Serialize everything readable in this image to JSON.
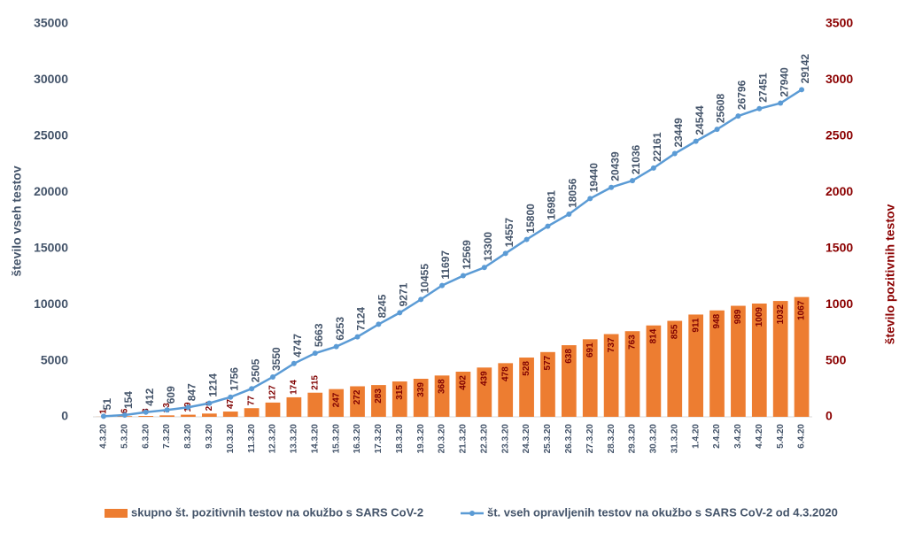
{
  "chart_data": {
    "type": "bar_line",
    "categories": [
      "4.3.20",
      "5.3.20",
      "6.3.20",
      "7.3.20",
      "8.3.20",
      "9.3.20",
      "10.3.20",
      "11.3.20",
      "12.3.20",
      "13.3.20",
      "14.3.20",
      "15.3.20",
      "16.3.20",
      "17.3.20",
      "18.3.20",
      "19.3.20",
      "20.3.20",
      "21.3.20",
      "22.3.20",
      "23.3.20",
      "24.3.20",
      "25.3.20",
      "26.3.20",
      "27.3.20",
      "28.3.20",
      "29.3.20",
      "30.3.20",
      "31.3.20",
      "1.4.20",
      "2.4.20",
      "3.4.20",
      "4.4.20",
      "5.4.20",
      "6.4.20"
    ],
    "series": [
      {
        "name": "skupno št. pozitivnih testov na okužbo s SARS CoV-2",
        "type": "bar",
        "axis": "y2",
        "color": "#ed7d31",
        "values": [
          1,
          6,
          8,
          13,
          19,
          29,
          47,
          77,
          127,
          174,
          215,
          247,
          272,
          283,
          315,
          339,
          368,
          402,
          439,
          478,
          528,
          577,
          638,
          691,
          737,
          763,
          814,
          855,
          911,
          948,
          989,
          1009,
          1032,
          1067
        ]
      },
      {
        "name": "št. vseh opravljenih testov na okužbo s SARS CoV-2 od 4.3.2020",
        "type": "line",
        "axis": "y",
        "color": "#5b9bd5",
        "values": [
          51,
          154,
          412,
          609,
          847,
          1214,
          1756,
          2505,
          3550,
          4747,
          5663,
          6253,
          7124,
          8245,
          9271,
          10455,
          11697,
          12569,
          13300,
          14557,
          15800,
          16981,
          18056,
          19440,
          20439,
          21036,
          22161,
          23449,
          24544,
          25608,
          26796,
          27451,
          27940,
          29142
        ]
      }
    ],
    "y_label": "število vseh testov",
    "y2_label": "število pozitivnih testov",
    "ylim": [
      0,
      35000
    ],
    "yticks": [
      0,
      5000,
      10000,
      15000,
      20000,
      25000,
      30000,
      35000
    ],
    "y2lim": [
      0,
      3500
    ],
    "y2ticks": [
      0,
      500,
      1000,
      1500,
      2000,
      2500,
      3000,
      3500
    ],
    "legend": "bottom"
  }
}
